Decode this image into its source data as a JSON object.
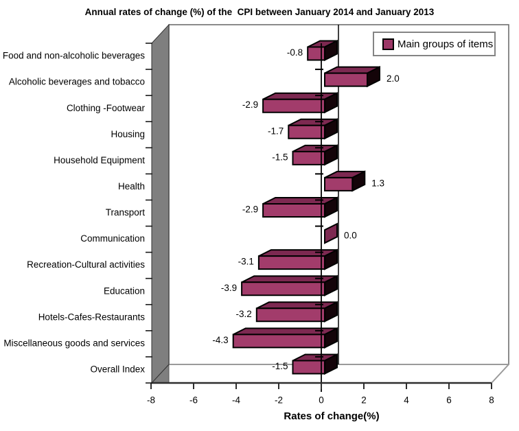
{
  "title": "Annual rates of change (%) of the  CPI between January 2014 and January 2013",
  "legend": {
    "label": "Main groups of items",
    "swatch_color": "#9C3767"
  },
  "xlabel": "Rates of change(%)",
  "chart_data": {
    "type": "bar",
    "style": "3d-horizontal",
    "categories": [
      "Food and non-alcoholic beverages",
      "Alcoholic beverages and tobacco",
      "Clothing -Footwear",
      "Housing",
      "Household Equipment",
      "Health",
      "Transport",
      "Communication",
      "Recreation-Cultural activities",
      "Education",
      "Hotels-Cafes-Restaurants",
      "Miscellaneous goods and services",
      "Overall Index"
    ],
    "values": [
      -0.8,
      2.0,
      -2.9,
      -1.7,
      -1.5,
      1.3,
      -2.9,
      0.0,
      -3.1,
      -3.9,
      -3.2,
      -4.3,
      -1.5
    ],
    "value_labels": [
      "-0.8",
      "2.0",
      "-2.9",
      "-1.7",
      "-1.5",
      "1.3",
      "-2.9",
      "0.0",
      "-3.1",
      "-3.9",
      "-3.2",
      "-4.3",
      "-1.5"
    ],
    "x_ticks": [
      -8,
      -6,
      -4,
      -2,
      0,
      2,
      4,
      6,
      8
    ],
    "x_tick_labels": [
      "-8",
      "-6",
      "-4",
      "-2",
      "0",
      "2",
      "4",
      "6",
      "8"
    ],
    "xlim": [
      -8,
      8
    ],
    "title": "Annual rates of change (%) of the  CPI between January 2014 and January 2013",
    "xlabel": "Rates of change(%)",
    "legend_entries": [
      "Main groups of items"
    ],
    "legend_position": "top-right-inside",
    "grid": "zero-line-only",
    "colors": {
      "bar_front": "#A23C6B",
      "bar_top": "#7D2951",
      "bar_side": "#140409",
      "bar_zero_face": "#7D2951",
      "wall": "#7F7F7F",
      "wall_edge": "#333333",
      "plot_border": "#6E6E6E",
      "floor_edge": "#9A9A9A",
      "axis_line": "#2E2E2E",
      "zero_line": "#000000",
      "text": "#000000"
    }
  }
}
